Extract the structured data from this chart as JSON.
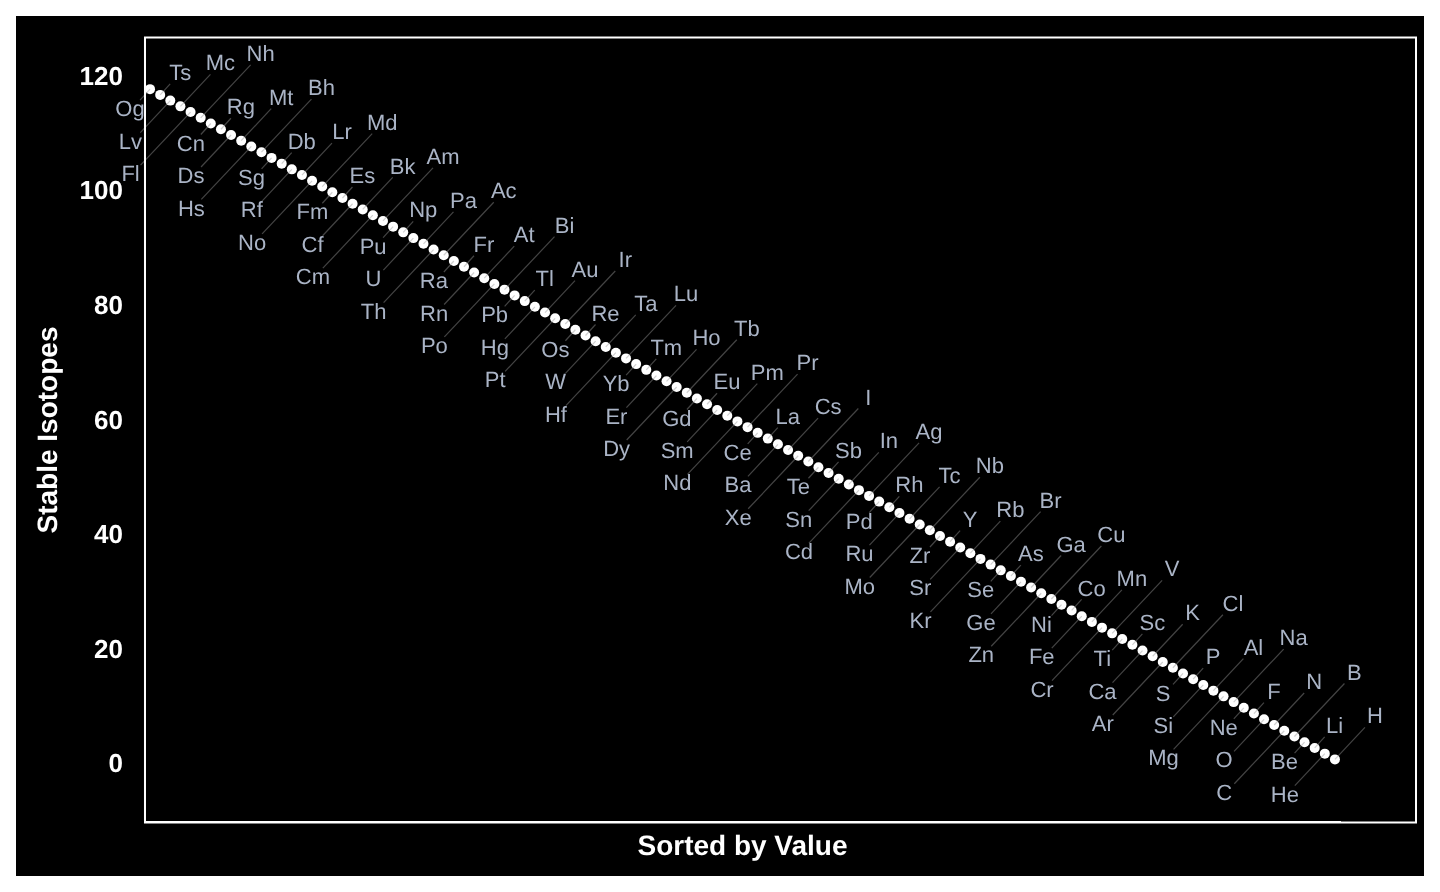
{
  "chart_data": {
    "type": "scatter",
    "xlabel": "Sorted by Value",
    "ylabel": "Stable Isotopes",
    "categories": [
      null,
      null,
      null,
      null,
      null,
      null,
      null,
      null,
      null,
      null,
      null,
      null,
      null,
      null,
      null,
      null,
      null,
      null,
      null,
      null,
      null,
      null,
      null,
      null,
      null,
      null,
      null,
      null,
      null,
      null,
      null,
      null,
      null,
      null,
      null,
      null,
      null,
      null,
      null,
      null,
      null,
      null,
      null,
      null,
      null,
      null,
      null,
      null,
      null,
      null,
      null,
      null,
      null,
      null,
      null,
      null,
      null,
      null,
      null,
      null,
      null,
      null,
      null,
      null,
      null,
      null,
      null,
      null,
      null,
      null,
      null,
      null,
      null,
      null,
      null,
      null,
      null,
      null,
      null,
      null,
      null,
      null,
      null,
      null,
      null,
      null,
      null,
      null,
      null,
      null,
      null,
      null,
      null,
      null,
      null,
      null,
      null,
      null,
      null,
      null,
      null,
      null,
      null,
      null,
      null,
      null,
      null,
      null,
      null,
      null,
      null,
      null,
      null,
      null,
      null,
      null,
      null,
      null
    ],
    "values": [
      118,
      117,
      116,
      115,
      114,
      113,
      112,
      111,
      110,
      109,
      108,
      107,
      106,
      105,
      104,
      103,
      102,
      101,
      100,
      99,
      98,
      97,
      96,
      95,
      94,
      93,
      92,
      91,
      90,
      89,
      88,
      87,
      86,
      85,
      84,
      83,
      82,
      81,
      80,
      79,
      78,
      77,
      76,
      75,
      74,
      73,
      72,
      71,
      70,
      69,
      68,
      67,
      66,
      65,
      64,
      63,
      62,
      61,
      60,
      59,
      58,
      57,
      56,
      55,
      54,
      53,
      52,
      51,
      50,
      49,
      48,
      47,
      46,
      45,
      44,
      43,
      42,
      41,
      40,
      39,
      38,
      37,
      36,
      35,
      34,
      33,
      32,
      31,
      30,
      29,
      28,
      27,
      26,
      25,
      24,
      23,
      22,
      21,
      20,
      19,
      18,
      17,
      16,
      15,
      14,
      13,
      12,
      11,
      10,
      9,
      8,
      7,
      6,
      5,
      4,
      3,
      2,
      1
    ],
    "color": "#ffffff",
    "marker": "circle",
    "ylim": [
      -10,
      127
    ],
    "yticks": [
      0,
      20,
      40,
      60,
      80,
      100,
      120
    ],
    "grid": false,
    "legend": false,
    "annotations": [
      "Og",
      "Ts",
      "Lv",
      "Mc",
      "Fl",
      "Nh",
      "Cn",
      "Rg",
      "Ds",
      "Mt",
      "Hs",
      "Bh",
      "Sg",
      "Db",
      "Rf",
      "Lr",
      "No",
      "Md",
      "Fm",
      "Es",
      "Cf",
      "Bk",
      "Cm",
      "Am",
      "Pu",
      "Np",
      "U",
      "Pa",
      "Th",
      "Ac",
      "Ra",
      "Fr",
      "Rn",
      "At",
      "Po",
      "Bi",
      "Pb",
      "Tl",
      "Hg",
      "Au",
      "Pt",
      "Ir",
      "Os",
      "Re",
      "W",
      "Ta",
      "Hf",
      "Lu",
      "Yb",
      "Tm",
      "Er",
      "Ho",
      "Dy",
      "Tb",
      "Gd",
      "Eu",
      "Sm",
      "Pm",
      "Nd",
      "Pr",
      "Ce",
      "La",
      "Ba",
      "Cs",
      "Xe",
      "I",
      "Te",
      "Sb",
      "Sn",
      "In",
      "Cd",
      "Ag",
      "Pd",
      "Rh",
      "Ru",
      "Tc",
      "Mo",
      "Nb",
      "Zr",
      "Y",
      "Sr",
      "Rb",
      "Kr",
      "Br",
      "Se",
      "As",
      "Ge",
      "Ga",
      "Zn",
      "Cu",
      "Ni",
      "Co",
      "Fe",
      "Mn",
      "Cr",
      "V",
      "Ti",
      "Sc",
      "Ca",
      "K",
      "Ar",
      "Cl",
      "S",
      "P",
      "Si",
      "Al",
      "Mg",
      "Na",
      "Ne",
      "F",
      "O",
      "N",
      "C",
      "B",
      "Be",
      "Li",
      "He",
      "H"
    ]
  }
}
